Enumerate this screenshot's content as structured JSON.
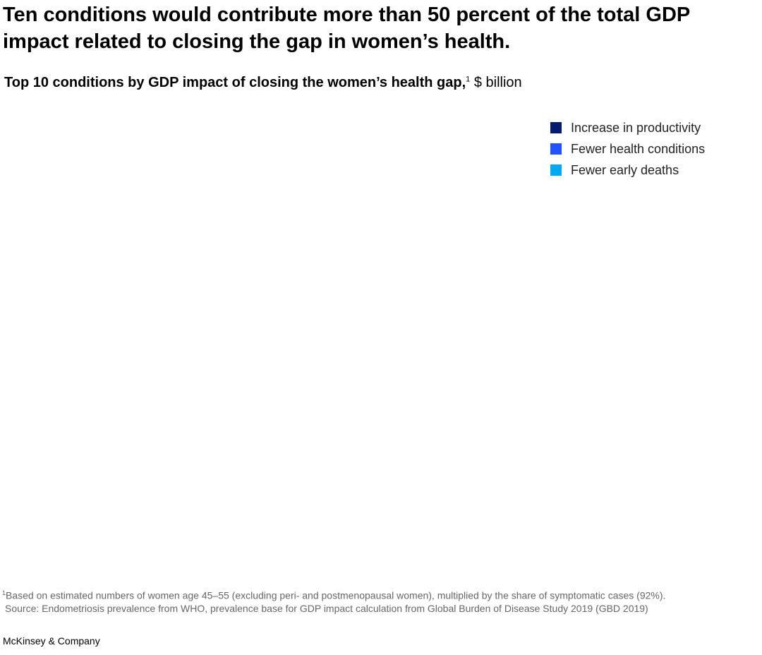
{
  "header": {
    "title": "Ten conditions would contribute more than 50 percent of the total GDP impact related to closing the gap in women’s health.",
    "subtitle": "Top 10 conditions by GDP impact of closing the women’s health gap,",
    "subtitle_marker": "1",
    "unit": "$ billion"
  },
  "legend": [
    {
      "name": "Increase in productivity",
      "color": "#051c6e"
    },
    {
      "name": "Fewer health conditions",
      "color": "#2251ff"
    },
    {
      "name": "Fewer early deaths",
      "color": "#00a9f4"
    }
  ],
  "footer": {
    "footnote_marker": "1",
    "footnote": "Based on estimated numbers of women age 45–55 (excluding peri- and postmenopausal women), multiplied by the share of symptomatic cases (92%).",
    "source": "Source: Endometriosis prevalence from WHO, prevalence base for GDP impact calculation from Global Burden of Disease Study 2019 (GBD 2019)",
    "brand": "McKinsey & Company"
  }
}
